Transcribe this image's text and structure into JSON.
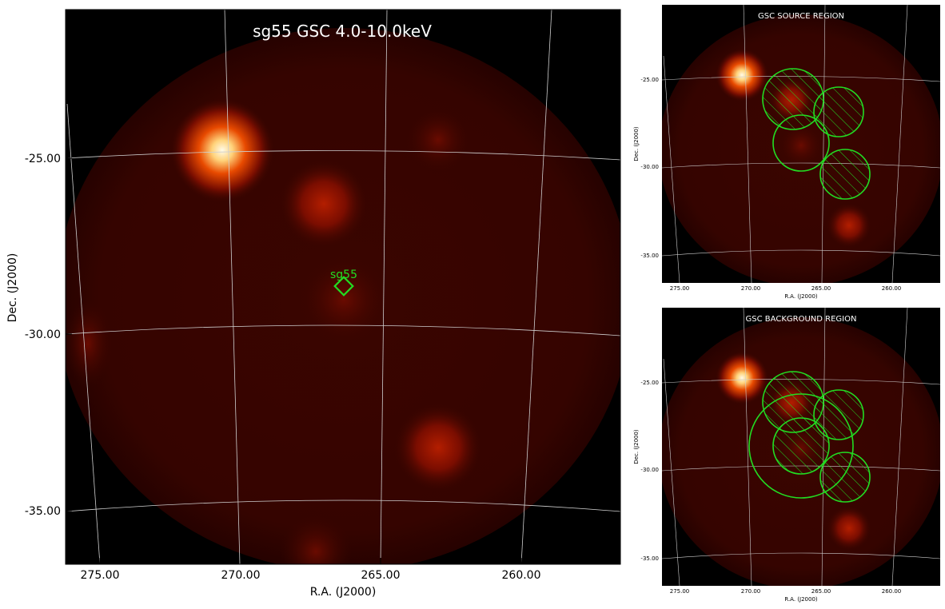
{
  "main": {
    "title": "sg55 GSC 4.0-10.0keV",
    "xlabel": "R.A. (J2000)",
    "ylabel": "Dec. (J2000)",
    "x_ticks": [
      "275.00",
      "270.00",
      "265.00",
      "260.00"
    ],
    "y_ticks": [
      "-25.00",
      "-30.00",
      "-35.00"
    ],
    "marker_label": "sg55",
    "marker_color": "#22dd22"
  },
  "source_panel": {
    "title": "GSC SOURCE REGION",
    "xlabel": "R.A. (J2000)",
    "ylabel": "Dec. (J2000)",
    "x_ticks": [
      "275.00",
      "270.00",
      "265.00",
      "260.00"
    ],
    "y_ticks": [
      "-25.00",
      "-30.00",
      "-35.00"
    ]
  },
  "background_panel": {
    "title": "GSC BACKGROUND REGION",
    "xlabel": "R.A. (J2000)",
    "ylabel": "Dec. (J2000)",
    "x_ticks": [
      "275.00",
      "270.00",
      "265.00",
      "260.00"
    ],
    "y_ticks": [
      "-25.00",
      "-30.00",
      "-35.00"
    ]
  },
  "colors": {
    "background": "#000000",
    "field": "#3a0400",
    "grid": "#cccccc",
    "region": "#22dd22"
  }
}
